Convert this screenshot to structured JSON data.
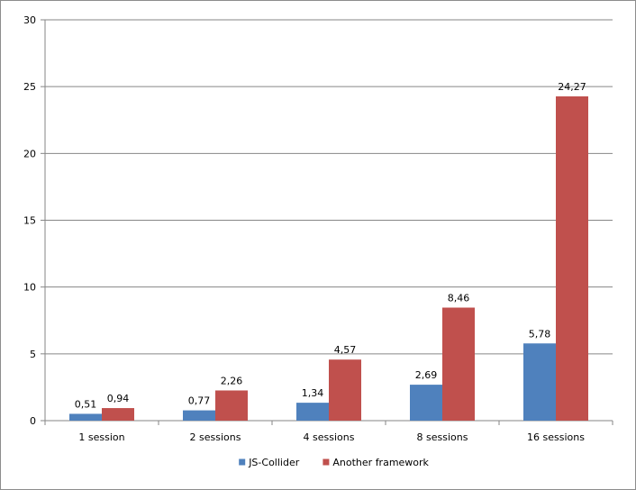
{
  "chart_data": {
    "type": "bar",
    "title": "",
    "xlabel": "",
    "ylabel": "",
    "categories": [
      "1 session",
      "2 sessions",
      "4 sessions",
      "8 sessions",
      "16 sessions"
    ],
    "series": [
      {
        "name": "JS-Collider",
        "color": "#4f81bd",
        "values": [
          0.51,
          0.77,
          1.34,
          2.69,
          5.78
        ],
        "labels": [
          "0,51",
          "0,77",
          "1,34",
          "2,69",
          "5,78"
        ]
      },
      {
        "name": "Another framework",
        "color": "#c0504d",
        "values": [
          0.94,
          2.26,
          4.57,
          8.46,
          24.27
        ],
        "labels": [
          "0,94",
          "2,26",
          "4,57",
          "8,46",
          "24,27"
        ]
      }
    ],
    "ylim": [
      0,
      30
    ],
    "yticks": [
      0,
      5,
      10,
      15,
      20,
      25,
      30
    ],
    "grid": true,
    "legend_position": "bottom"
  }
}
